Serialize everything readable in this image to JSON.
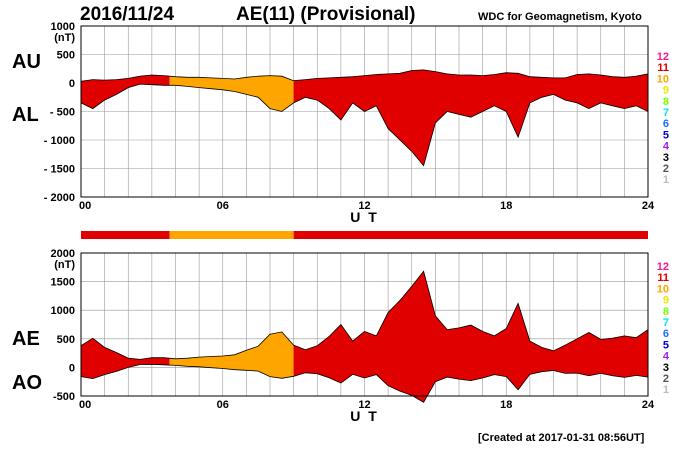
{
  "header": {
    "date": "2016/11/24",
    "title": "AE(11) (Provisional)",
    "source": "WDC for Geomagnetism, Kyoto"
  },
  "footer": {
    "created": "[Created at 2017-01-31 08:56UT]"
  },
  "legend": [
    {
      "label": "12",
      "color": "#ff1493"
    },
    {
      "label": "11",
      "color": "#e00000"
    },
    {
      "label": "10",
      "color": "#ffa500"
    },
    {
      "label": "9",
      "color": "#e8e800"
    },
    {
      "label": "8",
      "color": "#7fff00"
    },
    {
      "label": "7",
      "color": "#00e5ee"
    },
    {
      "label": "6",
      "color": "#1e6fff"
    },
    {
      "label": "5",
      "color": "#0000cd"
    },
    {
      "label": "4",
      "color": "#a020f0"
    },
    {
      "label": "3",
      "color": "#000000"
    },
    {
      "label": "2",
      "color": "#555555"
    },
    {
      "label": "1",
      "color": "#bbbbbb"
    }
  ],
  "stations_bar": [
    {
      "start": 0,
      "end": 3.75,
      "stations": 11
    },
    {
      "start": 3.75,
      "end": 9.0,
      "stations": 10
    },
    {
      "start": 9.0,
      "end": 24,
      "stations": 11
    }
  ],
  "chart_data": [
    {
      "type": "area",
      "name": "upper",
      "side_labels": [
        "AU",
        "AL"
      ],
      "xlabel": "U T",
      "ylabel": "(nT)",
      "xlim": [
        0,
        24
      ],
      "ylim": [
        -2000,
        1000
      ],
      "x_ticks": [
        "00",
        "06",
        "12",
        "18",
        "24"
      ],
      "y_ticks": [
        "1000",
        "500",
        "0",
        "- 500",
        "- 1000",
        "- 1500",
        "- 2000"
      ],
      "series": [
        {
          "name": "AU",
          "x": [
            0,
            0.5,
            1,
            1.5,
            2,
            2.5,
            3,
            3.5,
            4,
            4.5,
            5,
            5.5,
            6,
            6.5,
            7,
            7.5,
            8,
            8.5,
            9,
            9.5,
            10,
            10.5,
            11,
            11.5,
            12,
            12.5,
            13,
            13.5,
            14,
            14.5,
            15,
            15.5,
            16,
            16.5,
            17,
            17.5,
            18,
            18.5,
            19,
            19.5,
            20,
            20.5,
            21,
            21.5,
            22,
            22.5,
            23,
            23.5,
            24
          ],
          "values": [
            30,
            60,
            50,
            60,
            80,
            120,
            140,
            130,
            110,
            100,
            100,
            90,
            80,
            70,
            100,
            120,
            130,
            120,
            40,
            60,
            80,
            90,
            100,
            110,
            130,
            150,
            160,
            170,
            220,
            230,
            200,
            160,
            140,
            140,
            130,
            150,
            180,
            170,
            110,
            100,
            90,
            90,
            150,
            160,
            140,
            110,
            100,
            120,
            160
          ]
        },
        {
          "name": "AL",
          "x": [
            0,
            0.5,
            1,
            1.5,
            2,
            2.5,
            3,
            3.5,
            4,
            4.5,
            5,
            5.5,
            6,
            6.5,
            7,
            7.5,
            8,
            8.5,
            9,
            9.5,
            10,
            10.5,
            11,
            11.5,
            12,
            12.5,
            13,
            13.5,
            14,
            14.5,
            15,
            15.5,
            16,
            16.5,
            17,
            17.5,
            18,
            18.5,
            19,
            19.5,
            20,
            20.5,
            21,
            21.5,
            22,
            22.5,
            23,
            23.5,
            24
          ],
          "values": [
            -350,
            -450,
            -300,
            -200,
            -80,
            -20,
            -30,
            -40,
            -40,
            -60,
            -80,
            -100,
            -120,
            -150,
            -200,
            -250,
            -450,
            -500,
            -350,
            -250,
            -300,
            -450,
            -650,
            -350,
            -500,
            -400,
            -800,
            -1000,
            -1200,
            -1450,
            -700,
            -500,
            -550,
            -600,
            -500,
            -400,
            -500,
            -950,
            -350,
            -250,
            -200,
            -300,
            -350,
            -450,
            -350,
            -400,
            -450,
            -400,
            -500
          ]
        }
      ]
    },
    {
      "type": "area",
      "name": "lower",
      "side_labels": [
        "AE",
        "AO"
      ],
      "xlabel": "U T",
      "ylabel": "(nT)",
      "xlim": [
        0,
        24
      ],
      "ylim": [
        -500,
        2000
      ],
      "x_ticks": [
        "00",
        "06",
        "12",
        "18",
        "24"
      ],
      "y_ticks": [
        "2000",
        "1500",
        "1000",
        "500",
        "0",
        "-500"
      ],
      "series": [
        {
          "name": "AE",
          "x": [
            0,
            0.5,
            1,
            1.5,
            2,
            2.5,
            3,
            3.5,
            4,
            4.5,
            5,
            5.5,
            6,
            6.5,
            7,
            7.5,
            8,
            8.5,
            9,
            9.5,
            10,
            10.5,
            11,
            11.5,
            12,
            12.5,
            13,
            13.5,
            14,
            14.5,
            15,
            15.5,
            16,
            16.5,
            17,
            17.5,
            18,
            18.5,
            19,
            19.5,
            20,
            20.5,
            21,
            21.5,
            22,
            22.5,
            23,
            23.5,
            24
          ],
          "values": [
            380,
            510,
            350,
            260,
            160,
            140,
            170,
            170,
            150,
            160,
            180,
            190,
            200,
            220,
            300,
            370,
            580,
            620,
            390,
            310,
            380,
            540,
            750,
            460,
            630,
            550,
            960,
            1170,
            1420,
            1680,
            900,
            660,
            690,
            740,
            630,
            550,
            680,
            1120,
            460,
            350,
            290,
            390,
            500,
            610,
            490,
            510,
            550,
            520,
            660
          ]
        },
        {
          "name": "AO",
          "x": [
            0,
            0.5,
            1,
            1.5,
            2,
            2.5,
            3,
            3.5,
            4,
            4.5,
            5,
            5.5,
            6,
            6.5,
            7,
            7.5,
            8,
            8.5,
            9,
            9.5,
            10,
            10.5,
            11,
            11.5,
            12,
            12.5,
            13,
            13.5,
            14,
            14.5,
            15,
            15.5,
            16,
            16.5,
            17,
            17.5,
            18,
            18.5,
            19,
            19.5,
            20,
            20.5,
            21,
            21.5,
            22,
            22.5,
            23,
            23.5,
            24
          ],
          "values": [
            -160,
            -195,
            -125,
            -70,
            0,
            50,
            55,
            45,
            35,
            20,
            10,
            -5,
            -20,
            -40,
            -50,
            -65,
            -160,
            -190,
            -155,
            -95,
            -110,
            -180,
            -275,
            -120,
            -185,
            -125,
            -320,
            -415,
            -490,
            -610,
            -250,
            -170,
            -205,
            -230,
            -185,
            -125,
            -160,
            -390,
            -120,
            -75,
            -55,
            -105,
            -100,
            -145,
            -105,
            -145,
            -175,
            -140,
            -170
          ]
        }
      ]
    }
  ]
}
